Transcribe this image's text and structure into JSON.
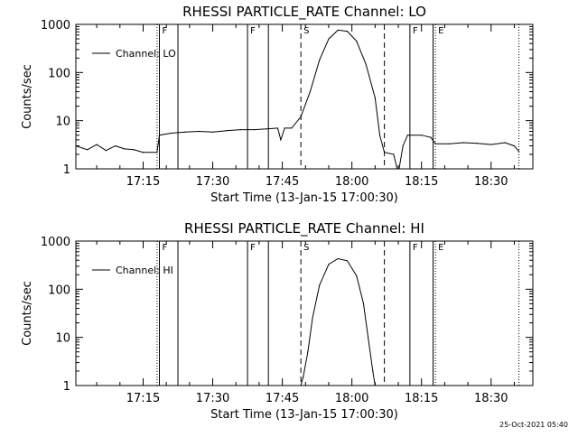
{
  "footer": {
    "timestamp": "25-Oct-2021 05:40"
  },
  "chart_data": [
    {
      "type": "line",
      "title": "RHESSI PARTICLE_RATE Channel: LO",
      "xlabel": "Start Time (13-Jan-15 17:00:30)",
      "ylabel": "Counts/sec",
      "xlim": [
        "17:00:30",
        "18:39:00"
      ],
      "ylim": [
        1,
        1000
      ],
      "yscale": "log",
      "xticks": [
        "17:15",
        "17:30",
        "17:45",
        "18:00",
        "18:15",
        "18:30"
      ],
      "yticks": [
        "1",
        "10",
        "100",
        "1000"
      ],
      "legend": {
        "position": "top-left",
        "entries": [
          "Channel: LO"
        ]
      },
      "series": [
        {
          "name": "Channel: LO",
          "points": [
            [
              "17:00:30",
              3.0
            ],
            [
              "17:03:00",
              2.5
            ],
            [
              "17:05:00",
              3.2
            ],
            [
              "17:07:00",
              2.4
            ],
            [
              "17:09:00",
              3.0
            ],
            [
              "17:11:00",
              2.6
            ],
            [
              "17:13:00",
              2.5
            ],
            [
              "17:15:00",
              2.2
            ],
            [
              "17:18:00",
              2.2
            ],
            [
              "17:18:30",
              5.0
            ],
            [
              "17:21:00",
              5.5
            ],
            [
              "17:24:00",
              5.8
            ],
            [
              "17:27:00",
              6.0
            ],
            [
              "17:30:00",
              5.8
            ],
            [
              "17:33:00",
              6.2
            ],
            [
              "17:36:00",
              6.5
            ],
            [
              "17:39:00",
              6.5
            ],
            [
              "17:42:00",
              6.8
            ],
            [
              "17:44:00",
              7.0
            ],
            [
              "17:44:40",
              4.0
            ],
            [
              "17:45:30",
              7.0
            ],
            [
              "17:47:00",
              7.0
            ],
            [
              "17:49:00",
              12
            ],
            [
              "17:51:00",
              40
            ],
            [
              "17:53:00",
              180
            ],
            [
              "17:55:00",
              500
            ],
            [
              "17:57:00",
              760
            ],
            [
              "17:59:00",
              720
            ],
            [
              "18:01:00",
              450
            ],
            [
              "18:03:00",
              150
            ],
            [
              "18:05:00",
              30
            ],
            [
              "18:06:00",
              5
            ],
            [
              "18:07:00",
              2.2
            ],
            [
              "18:09:00",
              2.0
            ],
            [
              "18:10:00",
              0.8
            ],
            [
              "18:11:00",
              3.0
            ],
            [
              "18:12:00",
              5.0
            ],
            [
              "18:15:00",
              5.0
            ],
            [
              "18:17:00",
              4.5
            ],
            [
              "18:18:00",
              3.3
            ],
            [
              "18:21:00",
              3.3
            ],
            [
              "18:24:00",
              3.5
            ],
            [
              "18:27:00",
              3.4
            ],
            [
              "18:30:00",
              3.2
            ],
            [
              "18:33:00",
              3.5
            ],
            [
              "18:35:00",
              3.0
            ],
            [
              "18:36:00",
              2.3
            ]
          ]
        }
      ],
      "markers": [
        {
          "time": "17:18:00",
          "style": "dotted",
          "label": ""
        },
        {
          "time": "17:18:30",
          "style": "solid",
          "label": "F"
        },
        {
          "time": "17:22:30",
          "style": "solid",
          "label": ""
        },
        {
          "time": "17:37:30",
          "style": "solid",
          "label": "F"
        },
        {
          "time": "17:42:00",
          "style": "solid",
          "label": ""
        },
        {
          "time": "17:49:00",
          "style": "dashed",
          "label": "S"
        },
        {
          "time": "18:07:00",
          "style": "dashed",
          "label": ""
        },
        {
          "time": "18:12:30",
          "style": "solid",
          "label": "F"
        },
        {
          "time": "18:17:30",
          "style": "solid",
          "label": ""
        },
        {
          "time": "18:18:00",
          "style": "dotted",
          "label": "E"
        },
        {
          "time": "18:36:00",
          "style": "dotted",
          "label": ""
        }
      ]
    },
    {
      "type": "line",
      "title": "RHESSI PARTICLE_RATE Channel: HI",
      "xlabel": "Start Time (13-Jan-15 17:00:30)",
      "ylabel": "Counts/sec",
      "xlim": [
        "17:00:30",
        "18:39:00"
      ],
      "ylim": [
        1,
        1000
      ],
      "yscale": "log",
      "xticks": [
        "17:15",
        "17:30",
        "17:45",
        "18:00",
        "18:15",
        "18:30"
      ],
      "yticks": [
        "1",
        "10",
        "100",
        "1000"
      ],
      "legend": {
        "position": "top-left",
        "entries": [
          "Channel: HI"
        ]
      },
      "series": [
        {
          "name": "Channel: HI",
          "points": [
            [
              "17:49:00",
              1.0
            ],
            [
              "17:49:30",
              1.5
            ],
            [
              "17:50:30",
              5
            ],
            [
              "17:51:30",
              25
            ],
            [
              "17:53:00",
              120
            ],
            [
              "17:55:00",
              330
            ],
            [
              "17:57:00",
              430
            ],
            [
              "17:59:00",
              390
            ],
            [
              "18:01:00",
              190
            ],
            [
              "18:02:30",
              50
            ],
            [
              "18:03:30",
              10
            ],
            [
              "18:04:30",
              2
            ],
            [
              "18:05:00",
              1.0
            ]
          ]
        }
      ],
      "markers": [
        {
          "time": "17:18:00",
          "style": "dotted",
          "label": ""
        },
        {
          "time": "17:18:30",
          "style": "solid",
          "label": "F"
        },
        {
          "time": "17:22:30",
          "style": "solid",
          "label": ""
        },
        {
          "time": "17:37:30",
          "style": "solid",
          "label": "F"
        },
        {
          "time": "17:42:00",
          "style": "solid",
          "label": ""
        },
        {
          "time": "17:49:00",
          "style": "dashed",
          "label": "S"
        },
        {
          "time": "18:07:00",
          "style": "dashed",
          "label": ""
        },
        {
          "time": "18:12:30",
          "style": "solid",
          "label": "F"
        },
        {
          "time": "18:17:30",
          "style": "solid",
          "label": ""
        },
        {
          "time": "18:18:00",
          "style": "dotted",
          "label": "E"
        },
        {
          "time": "18:36:00",
          "style": "dotted",
          "label": ""
        }
      ]
    }
  ]
}
